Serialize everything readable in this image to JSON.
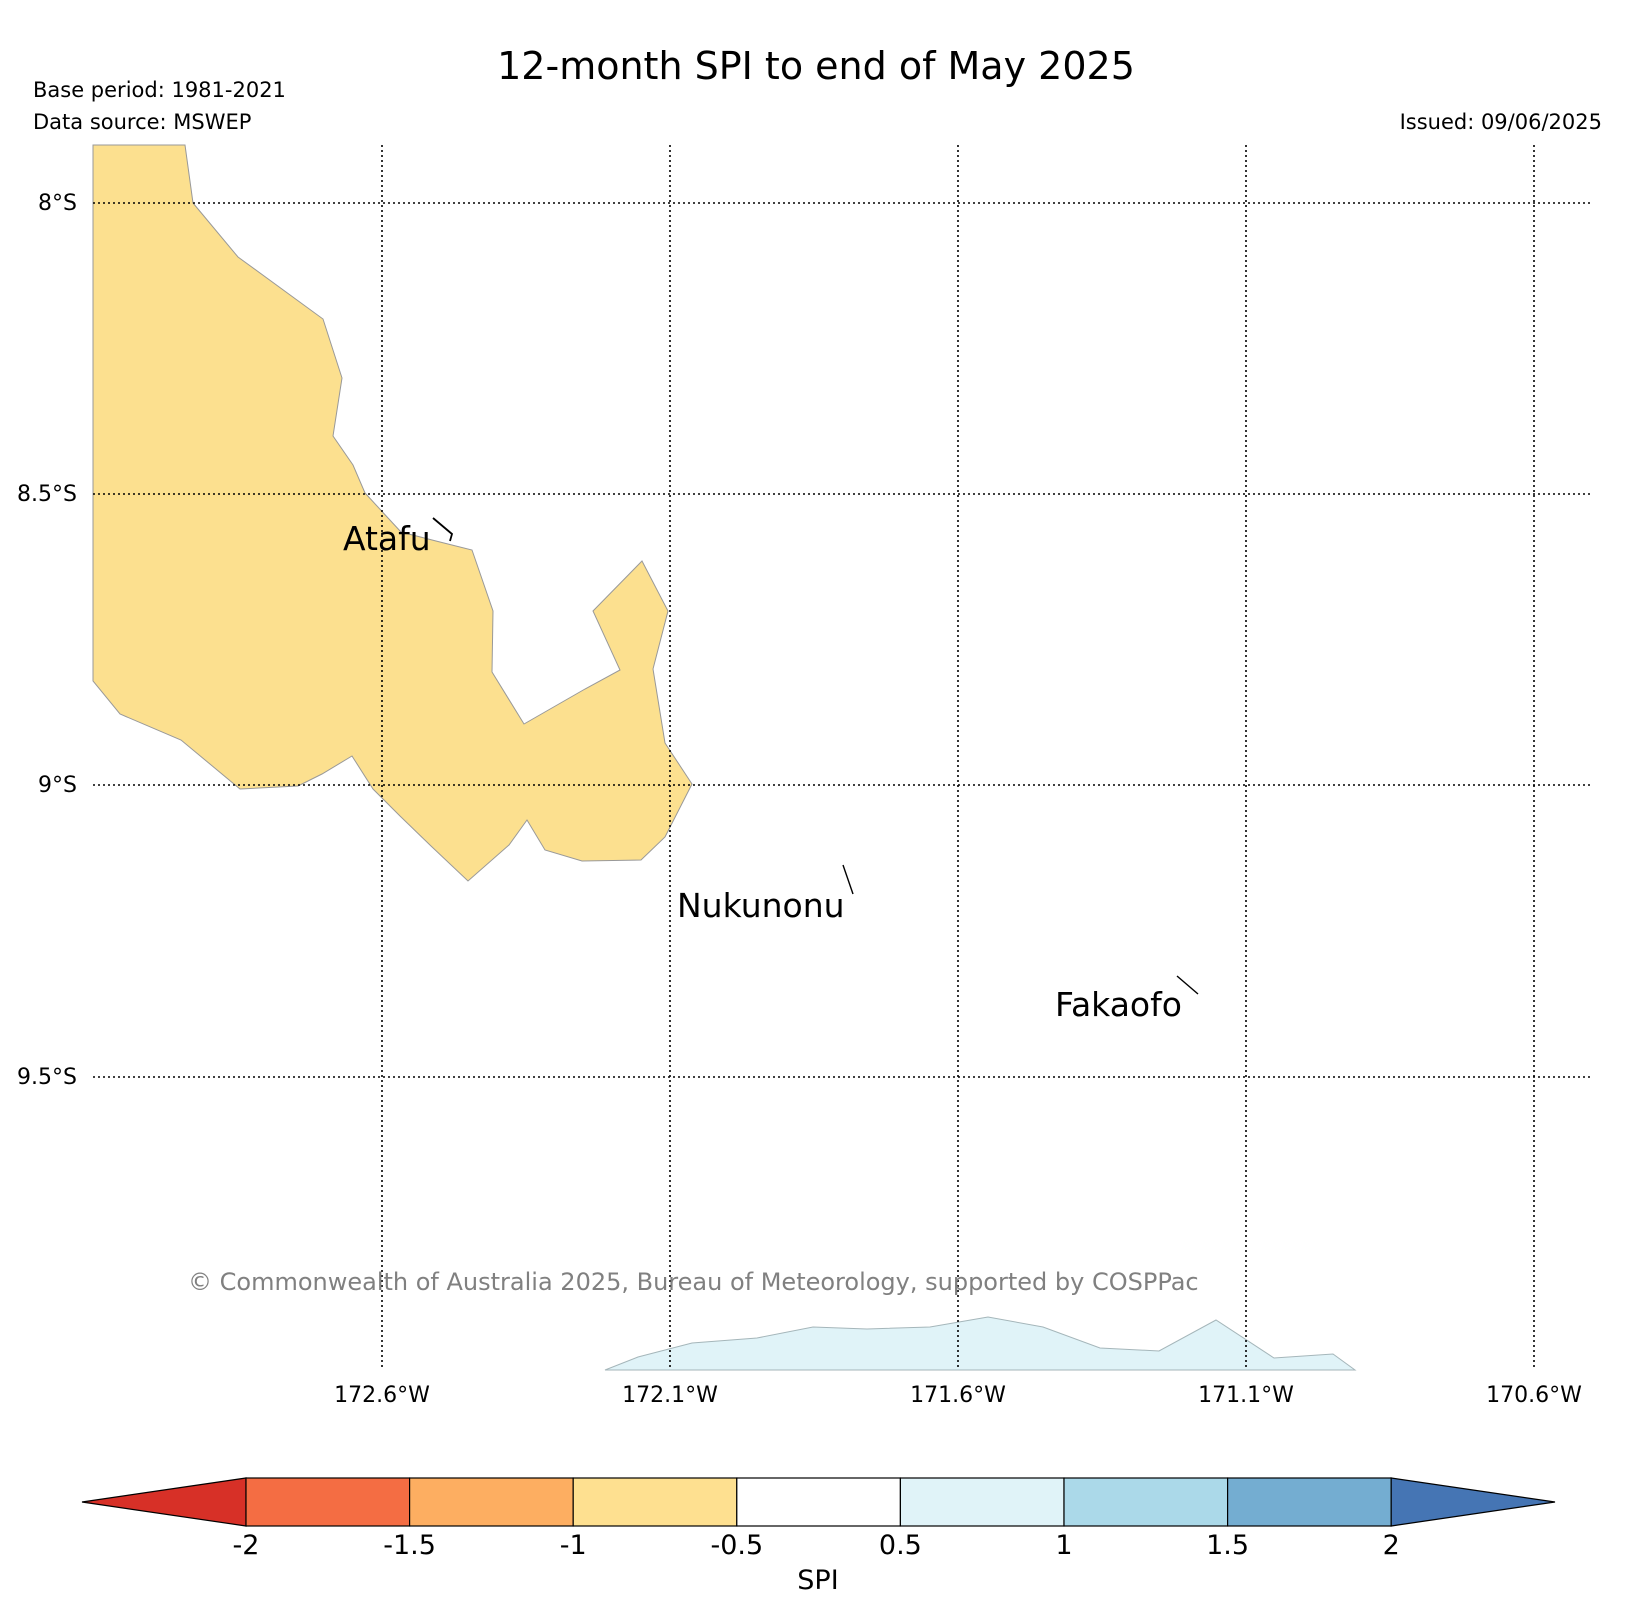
{
  "header": {
    "title": "12-month SPI to end of May 2025",
    "base_period": "Base period: 1981-2021",
    "data_source": "Data source: MSWEP",
    "issued": "Issued: 09/06/2025"
  },
  "map": {
    "lat_labels": [
      "8°S",
      "8.5°S",
      "9°S",
      "9.5°S"
    ],
    "lon_labels": [
      "172.6°W",
      "172.1°W",
      "171.6°W",
      "171.1°W",
      "170.6°W"
    ],
    "places": [
      "Atafu",
      "Nukunonu",
      "Fakaofo"
    ],
    "regions": [
      {
        "spi_class": "-1 to -0.5",
        "color": "#fce08f"
      },
      {
        "spi_class": "0.5 to 1",
        "color": "#e0f3f8"
      }
    ],
    "copyright": "© Commonwealth of Australia 2025, Bureau of Meteorology, supported by COSPPac",
    "colors": {
      "grid": "#000000",
      "ocean": "#ffffff",
      "copyright_text": "#808080"
    }
  },
  "colorbar": {
    "label": "SPI",
    "ticks": [
      "-2",
      "-1.5",
      "-1",
      "-0.5",
      "0.5",
      "1",
      "1.5",
      "2"
    ],
    "classes": [
      {
        "range": "< -2",
        "color": "#d73027"
      },
      {
        "range": "-2 to -1.5",
        "color": "#f46d43"
      },
      {
        "range": "-1.5 to -1",
        "color": "#fdae61"
      },
      {
        "range": "-1 to -0.5",
        "color": "#fee090"
      },
      {
        "range": "-0.5 to 0.5",
        "color": "#ffffff"
      },
      {
        "range": "0.5 to 1",
        "color": "#e0f3f8"
      },
      {
        "range": "1 to 1.5",
        "color": "#abd9e9"
      },
      {
        "range": "1.5 to 2",
        "color": "#74add1"
      },
      {
        "range": "> 2",
        "color": "#4575b4"
      }
    ]
  }
}
